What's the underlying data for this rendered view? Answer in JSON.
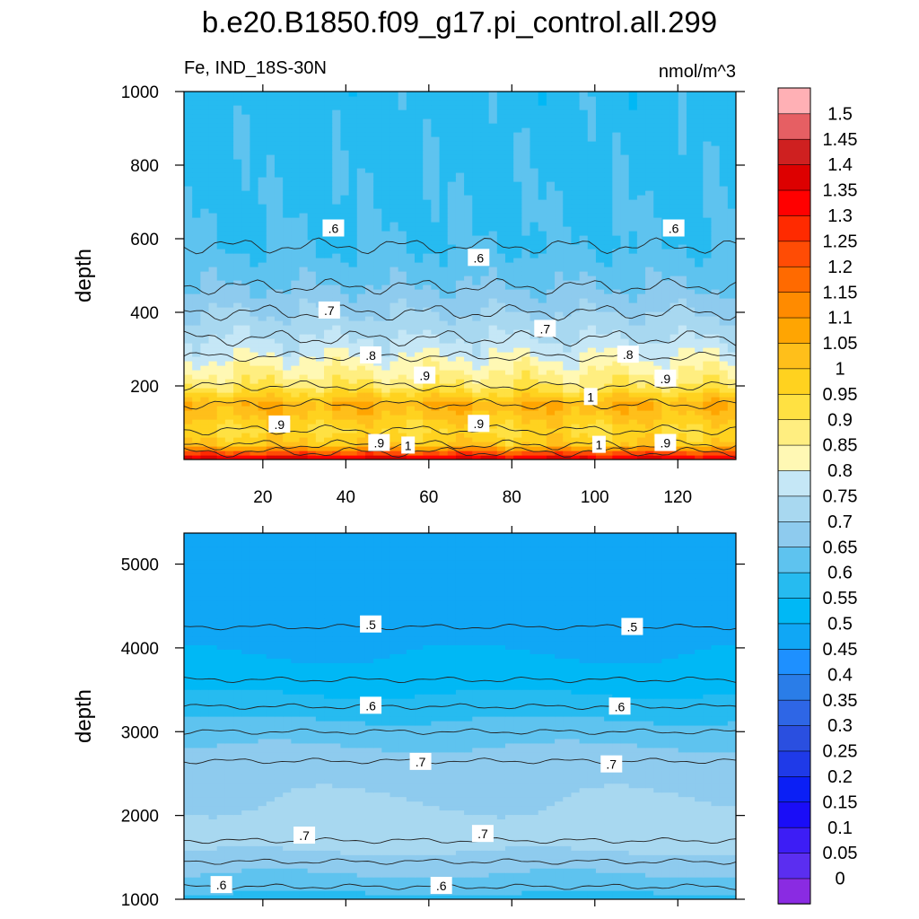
{
  "title": "b.e20.B1850.f09_g17.pi_control.all.299",
  "chart_data": [
    {
      "type": "heatmap",
      "panel": "upper",
      "left_string": "Fe, IND_18S-30N",
      "right_string": "nmol/m^3",
      "ylabel": "depth",
      "xlabel": "",
      "xlim": [
        1,
        134
      ],
      "ylim": [
        1000,
        0
      ],
      "x_ticks": [
        "20",
        "40",
        "60",
        "80",
        "100",
        "120"
      ],
      "y_ticks": [
        "200",
        "400",
        "600",
        "800",
        "1000"
      ],
      "depth_profile": [
        {
          "depth": 5,
          "value": 1.35
        },
        {
          "depth": 20,
          "value": 1.2
        },
        {
          "depth": 40,
          "value": 1.0
        },
        {
          "depth": 80,
          "value": 0.95
        },
        {
          "depth": 150,
          "value": 1.05
        },
        {
          "depth": 200,
          "value": 0.9
        },
        {
          "depth": 280,
          "value": 0.8
        },
        {
          "depth": 330,
          "value": 0.75
        },
        {
          "depth": 400,
          "value": 0.7
        },
        {
          "depth": 470,
          "value": 0.65
        },
        {
          "depth": 580,
          "value": 0.6
        },
        {
          "depth": 1000,
          "value": 0.575
        }
      ],
      "contour_labels": [
        {
          "text": ".9",
          "x": 48,
          "depth": 45
        },
        {
          "text": "1",
          "x": 55,
          "depth": 38
        },
        {
          "text": "1",
          "x": 101,
          "depth": 40
        },
        {
          "text": ".9",
          "x": 117,
          "depth": 45
        },
        {
          "text": ".9",
          "x": 24,
          "depth": 95
        },
        {
          "text": ".9",
          "x": 72,
          "depth": 97
        },
        {
          "text": "1",
          "x": 99,
          "depth": 170
        },
        {
          "text": ".9",
          "x": 59,
          "depth": 228
        },
        {
          "text": ".9",
          "x": 117,
          "depth": 220
        },
        {
          "text": ".8",
          "x": 46,
          "depth": 283
        },
        {
          "text": ".8",
          "x": 108,
          "depth": 285
        },
        {
          "text": ".7",
          "x": 88,
          "depth": 355
        },
        {
          "text": ".7",
          "x": 36,
          "depth": 405
        },
        {
          "text": ".6",
          "x": 72,
          "depth": 548
        },
        {
          "text": ".6",
          "x": 37,
          "depth": 628
        },
        {
          "text": ".6",
          "x": 119,
          "depth": 628
        }
      ]
    },
    {
      "type": "heatmap",
      "panel": "lower",
      "ylabel": "depth",
      "xlim": [
        1,
        134
      ],
      "ylim": [
        5370,
        1000
      ],
      "y_ticks": [
        "1000",
        "2000",
        "3000",
        "4000",
        "5000"
      ],
      "depth_profile": [
        {
          "depth": 1000,
          "value": 0.575
        },
        {
          "depth": 1150,
          "value": 0.625
        },
        {
          "depth": 1450,
          "value": 0.675
        },
        {
          "depth": 1700,
          "value": 0.725
        },
        {
          "depth": 2650,
          "value": 0.675
        },
        {
          "depth": 3000,
          "value": 0.625
        },
        {
          "depth": 3300,
          "value": 0.575
        },
        {
          "depth": 3620,
          "value": 0.525
        },
        {
          "depth": 4250,
          "value": 0.475
        },
        {
          "depth": 5370,
          "value": 0.47
        }
      ],
      "contour_labels": [
        {
          "text": ".6",
          "x": 10,
          "depth": 1170
        },
        {
          "text": ".6",
          "x": 63,
          "depth": 1160
        },
        {
          "text": ".7",
          "x": 30,
          "depth": 1760
        },
        {
          "text": ".7",
          "x": 73,
          "depth": 1780
        },
        {
          "text": ".7",
          "x": 58,
          "depth": 2640
        },
        {
          "text": ".7",
          "x": 104,
          "depth": 2610
        },
        {
          "text": ".6",
          "x": 46,
          "depth": 3310
        },
        {
          "text": ".6",
          "x": 106,
          "depth": 3300
        },
        {
          "text": ".5",
          "x": 46,
          "depth": 4280
        },
        {
          "text": ".5",
          "x": 109,
          "depth": 4250
        }
      ]
    }
  ],
  "colorbar": {
    "levels": [
      "0",
      "0.05",
      "0.1",
      "0.15",
      "0.2",
      "0.25",
      "0.3",
      "0.35",
      "0.4",
      "0.45",
      "0.5",
      "0.55",
      "0.6",
      "0.65",
      "0.7",
      "0.75",
      "0.8",
      "0.85",
      "0.9",
      "0.95",
      "1",
      "1.05",
      "1.1",
      "1.15",
      "1.2",
      "1.25",
      "1.3",
      "1.35",
      "1.4",
      "1.45",
      "1.5"
    ],
    "colors": [
      "#8a2be2",
      "#5b2ef0",
      "#3d1df5",
      "#1a0df7",
      "#0b1ff5",
      "#1f3ae8",
      "#2a4fe0",
      "#2e66e6",
      "#2a7de8",
      "#1e90ff",
      "#10a7f5",
      "#00b8f5",
      "#26bbf0",
      "#5ec3ef",
      "#8ecbee",
      "#a8d8f0",
      "#c5e7f6",
      "#fff8b4",
      "#ffee80",
      "#ffe142",
      "#ffd21f",
      "#ffbf1a",
      "#ffa502",
      "#ff8b00",
      "#ff6a00",
      "#ff4c05",
      "#ff2a00",
      "#ff0000",
      "#dd0000",
      "#cf2020",
      "#e65f63",
      "#ffb0b5"
    ]
  }
}
